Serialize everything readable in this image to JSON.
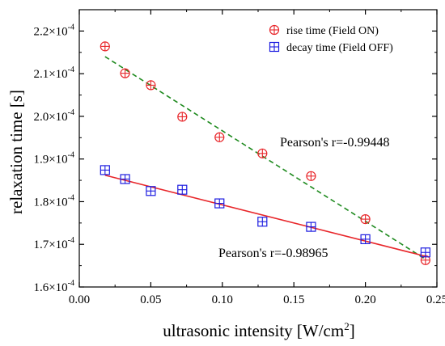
{
  "chart_data": {
    "type": "scatter",
    "xlabel": "ultrasonic intensity [W/cm",
    "xlabel_sup": "2",
    "xlabel_close": "]",
    "ylabel": "relaxation time [s]",
    "xlim": [
      0.0,
      0.25
    ],
    "ylim": [
      0.00016,
      0.000225
    ],
    "x_ticks": [
      0.0,
      0.05,
      0.1,
      0.15,
      0.2,
      0.25
    ],
    "x_tick_labels": [
      "0.00",
      "0.05",
      "0.10",
      "0.15",
      "0.20",
      "0.25"
    ],
    "y_ticks": [
      0.00016,
      0.00017,
      0.00018,
      0.00019,
      0.0002,
      0.00021,
      0.00022
    ],
    "y_tick_labels": [
      {
        "mantissa": "1.6",
        "base": "×10",
        "exp": "-4"
      },
      {
        "mantissa": "1.7",
        "base": "×10",
        "exp": "-4"
      },
      {
        "mantissa": "1.8",
        "base": "×10",
        "exp": "-4"
      },
      {
        "mantissa": "1.9",
        "base": "×10",
        "exp": "-4"
      },
      {
        "mantissa": "2.0",
        "base": "×10",
        "exp": "-4"
      },
      {
        "mantissa": "2.1",
        "base": "×10",
        "exp": "-4"
      },
      {
        "mantissa": "2.2",
        "base": "×10",
        "exp": "-4"
      }
    ],
    "grid": false,
    "legend_position": "top-right",
    "series": [
      {
        "name": "rise time (Field ON)",
        "marker": "circle-plus",
        "color": "#e8262a",
        "fit_color": "#1e8a1e",
        "fit_style": "dashed",
        "x": [
          0.018,
          0.032,
          0.05,
          0.072,
          0.098,
          0.128,
          0.162,
          0.2,
          0.242
        ],
        "y": [
          0.0002164,
          0.0002101,
          0.0002073,
          0.0001999,
          0.0001951,
          0.0001913,
          0.000186,
          0.0001759,
          0.0001663
        ],
        "fit": {
          "x": [
            0.018,
            0.242
          ],
          "y": [
            0.000214,
            0.0001665
          ]
        },
        "annotation": "Pearson's r=-0.99448"
      },
      {
        "name": "decay time (Field OFF)",
        "marker": "square-plus",
        "color": "#1d1de0",
        "fit_color": "#e8262a",
        "fit_style": "solid",
        "x": [
          0.018,
          0.032,
          0.05,
          0.072,
          0.098,
          0.128,
          0.162,
          0.2,
          0.242
        ],
        "y": [
          0.0001874,
          0.0001853,
          0.0001825,
          0.0001828,
          0.0001796,
          0.0001753,
          0.0001741,
          0.0001712,
          0.0001681
        ],
        "fit": {
          "x": [
            0.018,
            0.242
          ],
          "y": [
            0.0001862,
            0.0001672
          ]
        },
        "annotation": "Pearson's r=-0.98965"
      }
    ]
  }
}
